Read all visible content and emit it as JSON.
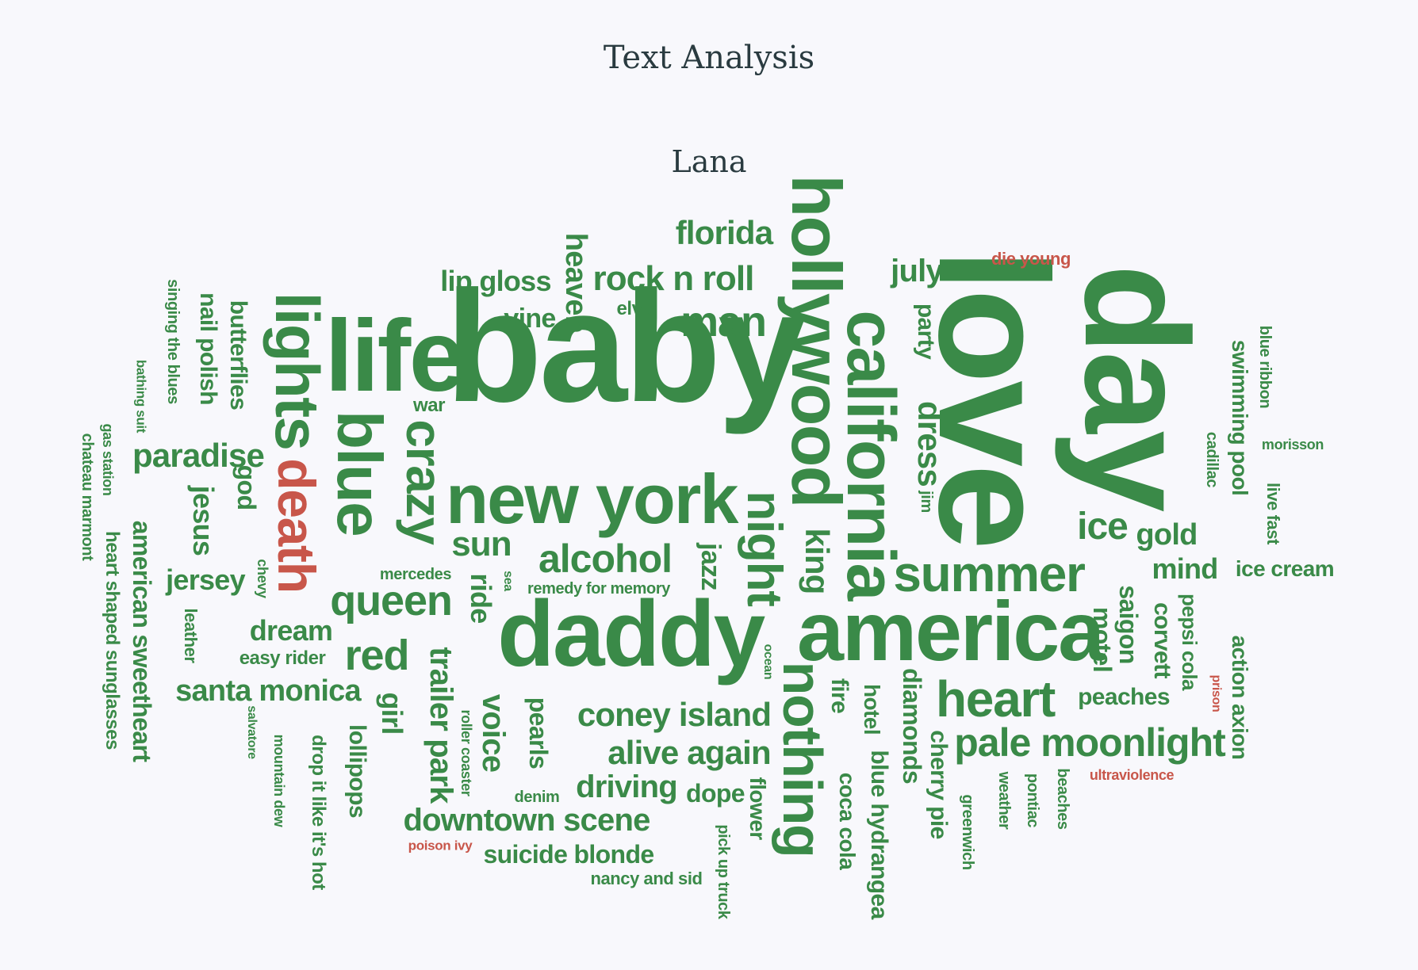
{
  "page": {
    "title": "Text Analysis",
    "cloud_title": "Lana"
  },
  "colors": {
    "primary": "#3a8a48",
    "highlight": "#c8564a",
    "background": "#f8f8fc",
    "title": "#2a3b40"
  },
  "words": [
    {
      "text": "baby",
      "color": "primary"
    },
    {
      "text": "love",
      "color": "primary"
    },
    {
      "text": "day",
      "color": "primary"
    },
    {
      "text": "daddy",
      "color": "primary"
    },
    {
      "text": "america",
      "color": "primary"
    },
    {
      "text": "life",
      "color": "primary"
    },
    {
      "text": "california",
      "color": "primary"
    },
    {
      "text": "hollywood",
      "color": "primary"
    },
    {
      "text": "new york",
      "color": "primary"
    },
    {
      "text": "lights",
      "color": "primary"
    },
    {
      "text": "blue",
      "color": "primary"
    },
    {
      "text": "crazy",
      "color": "primary"
    },
    {
      "text": "death",
      "color": "highlight"
    },
    {
      "text": "nothing",
      "color": "primary"
    },
    {
      "text": "night",
      "color": "primary"
    },
    {
      "text": "summer",
      "color": "primary"
    },
    {
      "text": "heart",
      "color": "primary"
    },
    {
      "text": "man",
      "color": "primary"
    },
    {
      "text": "queen",
      "color": "primary"
    },
    {
      "text": "pale moonlight",
      "color": "primary"
    },
    {
      "text": "alcohol",
      "color": "primary"
    },
    {
      "text": "rock n roll",
      "color": "primary"
    },
    {
      "text": "florida",
      "color": "primary"
    },
    {
      "text": "paradise",
      "color": "primary"
    },
    {
      "text": "red",
      "color": "primary"
    },
    {
      "text": "coney island",
      "color": "primary"
    },
    {
      "text": "alive again",
      "color": "primary"
    },
    {
      "text": "downtown scene",
      "color": "primary"
    },
    {
      "text": "ice",
      "color": "primary"
    },
    {
      "text": "king",
      "color": "primary"
    },
    {
      "text": "dress",
      "color": "primary"
    },
    {
      "text": "trailer park",
      "color": "primary"
    },
    {
      "text": "voice",
      "color": "primary"
    },
    {
      "text": "sun",
      "color": "primary"
    },
    {
      "text": "santa monica",
      "color": "primary"
    },
    {
      "text": "driving",
      "color": "primary"
    },
    {
      "text": "july",
      "color": "primary"
    },
    {
      "text": "heaven",
      "color": "primary"
    },
    {
      "text": "lip gloss",
      "color": "primary"
    },
    {
      "text": "gold",
      "color": "primary"
    },
    {
      "text": "mind",
      "color": "primary"
    },
    {
      "text": "suicide blonde",
      "color": "primary"
    },
    {
      "text": "jesus",
      "color": "primary"
    },
    {
      "text": "american sweetheart",
      "color": "primary"
    },
    {
      "text": "motel",
      "color": "primary"
    },
    {
      "text": "saigon",
      "color": "primary"
    },
    {
      "text": "corvett",
      "color": "primary"
    },
    {
      "text": "jersey",
      "color": "primary"
    },
    {
      "text": "dream",
      "color": "primary"
    },
    {
      "text": "girl",
      "color": "primary"
    },
    {
      "text": "ride",
      "color": "primary"
    },
    {
      "text": "jazz",
      "color": "primary"
    },
    {
      "text": "vine",
      "color": "primary"
    },
    {
      "text": "diamonds",
      "color": "primary"
    },
    {
      "text": "cherry pie",
      "color": "primary"
    },
    {
      "text": "blue hydrangea",
      "color": "primary"
    },
    {
      "text": "fire",
      "color": "primary"
    },
    {
      "text": "hotel",
      "color": "primary"
    },
    {
      "text": "flower",
      "color": "primary"
    },
    {
      "text": "coca cola",
      "color": "primary"
    },
    {
      "text": "dope",
      "color": "primary"
    },
    {
      "text": "pearls",
      "color": "primary"
    },
    {
      "text": "lollipops",
      "color": "primary"
    },
    {
      "text": "butterflies",
      "color": "primary"
    },
    {
      "text": "nail polish",
      "color": "primary"
    },
    {
      "text": "god",
      "color": "primary"
    },
    {
      "text": "party",
      "color": "primary"
    },
    {
      "text": "peaches",
      "color": "primary"
    },
    {
      "text": "swimming pool",
      "color": "primary"
    },
    {
      "text": "action axion",
      "color": "primary"
    },
    {
      "text": "ice cream",
      "color": "primary"
    },
    {
      "text": "pepsi cola",
      "color": "primary"
    },
    {
      "text": "heart shaped sunglasses",
      "color": "primary"
    },
    {
      "text": "drop it like it's hot",
      "color": "primary"
    },
    {
      "text": "elvis",
      "color": "primary"
    },
    {
      "text": "war",
      "color": "primary"
    },
    {
      "text": "easy rider",
      "color": "primary"
    },
    {
      "text": "singing the blues",
      "color": "primary"
    },
    {
      "text": "leather",
      "color": "primary"
    },
    {
      "text": "blue ribbon",
      "color": "primary"
    },
    {
      "text": "cadillac",
      "color": "primary"
    },
    {
      "text": "live fast",
      "color": "primary"
    },
    {
      "text": "nancy and sid",
      "color": "primary"
    },
    {
      "text": "chateau marmont",
      "color": "primary"
    },
    {
      "text": "mercedes",
      "color": "primary"
    },
    {
      "text": "jim",
      "color": "primary"
    },
    {
      "text": "greenwich",
      "color": "primary"
    },
    {
      "text": "pontiac",
      "color": "primary"
    },
    {
      "text": "weather",
      "color": "primary"
    },
    {
      "text": "beaches",
      "color": "primary"
    },
    {
      "text": "pick up truck",
      "color": "primary"
    },
    {
      "text": "remedy for memory",
      "color": "primary"
    },
    {
      "text": "roller coaster",
      "color": "primary"
    },
    {
      "text": "mountain dew",
      "color": "primary"
    },
    {
      "text": "gas station",
      "color": "primary"
    },
    {
      "text": "bathing suit",
      "color": "primary"
    },
    {
      "text": "denim",
      "color": "primary"
    },
    {
      "text": "chevy",
      "color": "primary"
    },
    {
      "text": "salvatore",
      "color": "primary"
    },
    {
      "text": "ocean",
      "color": "primary"
    },
    {
      "text": "sea",
      "color": "primary"
    },
    {
      "text": "morisson",
      "color": "primary"
    },
    {
      "text": "die young",
      "color": "highlight"
    },
    {
      "text": "ultraviolence",
      "color": "highlight"
    },
    {
      "text": "prison",
      "color": "highlight"
    },
    {
      "text": "poison ivy",
      "color": "highlight"
    }
  ]
}
